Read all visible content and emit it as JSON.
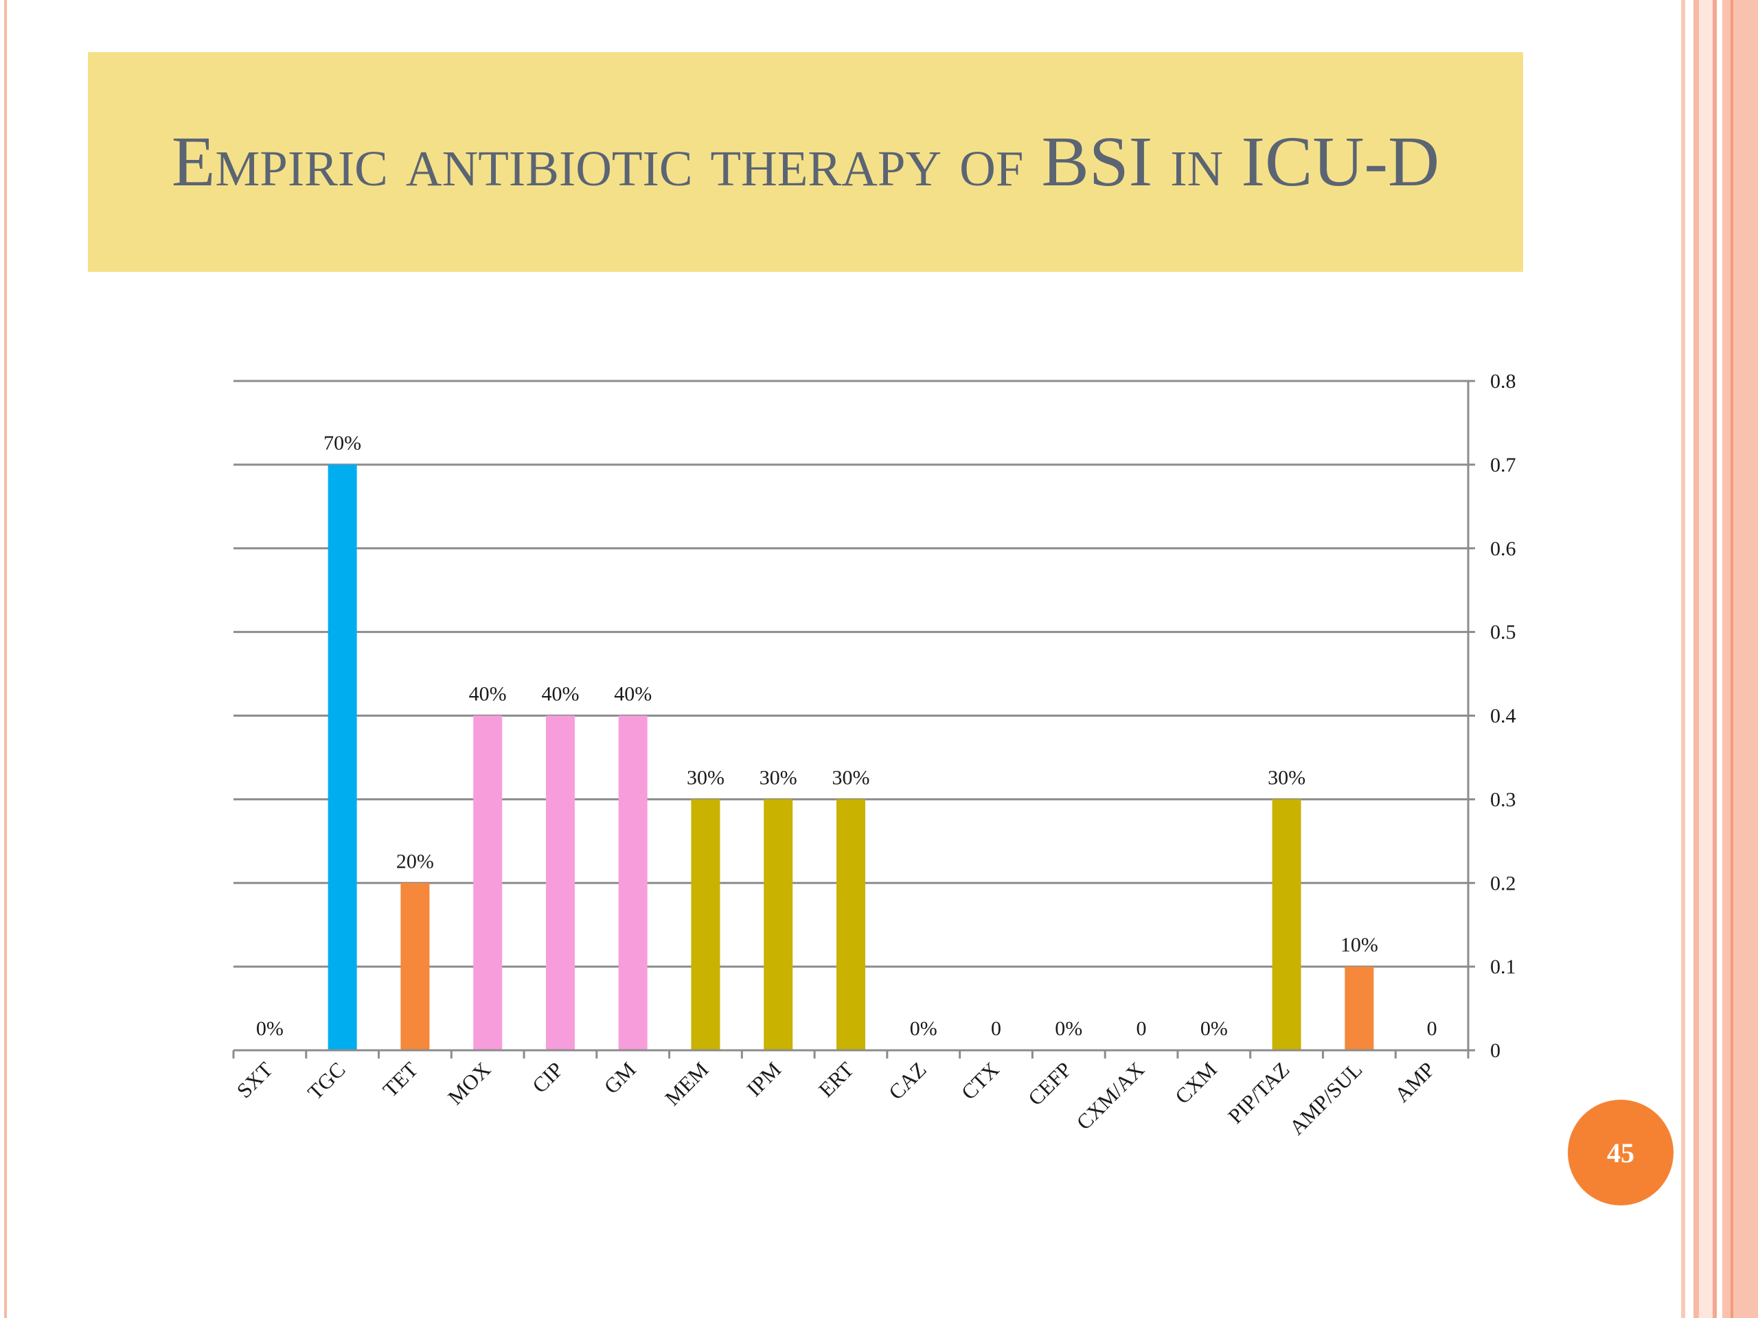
{
  "slide": {
    "title": "Empiric antibiotic therapy of BSI in ICU-D",
    "page_number": "45"
  },
  "theme": {
    "title_bg": "#f5e08a",
    "title_color": "#5a6473",
    "accent": "#f58233",
    "border": "#f7b9a5"
  },
  "chart_data": {
    "type": "bar",
    "categories": [
      "SXT",
      "TGC",
      "TET",
      "MOX",
      "CIP",
      "GM",
      "MEM",
      "IPM",
      "ERT",
      "CAZ",
      "CTX",
      "CEFP",
      "CXM/AX",
      "CXM",
      "PIP/TAZ",
      "AMP/SUL",
      "AMP"
    ],
    "values": [
      0,
      0.7,
      0.2,
      0.4,
      0.4,
      0.4,
      0.3,
      0.3,
      0.3,
      0,
      0,
      0,
      0,
      0,
      0.3,
      0.1,
      0
    ],
    "data_labels": [
      "0%",
      "70%",
      "20%",
      "40%",
      "40%",
      "40%",
      "30%",
      "30%",
      "30%",
      "0%",
      "0",
      "0%",
      "0",
      "0%",
      "30%",
      "10%",
      "0"
    ],
    "colors": [
      "#00aeef",
      "#00aeef",
      "#f5883a",
      "#f79ddc",
      "#f79ddc",
      "#f79ddc",
      "#c9b200",
      "#c9b200",
      "#c9b200",
      "#c9b200",
      "#c9b200",
      "#c9b200",
      "#c9b200",
      "#c9b200",
      "#c9b200",
      "#f5883a",
      "#f5883a"
    ],
    "y_ticks": [
      "0",
      "0.1",
      "0.2",
      "0.3",
      "0.4",
      "0.5",
      "0.6",
      "0.7",
      "0.8"
    ],
    "ylim": [
      0,
      0.8
    ],
    "y_axis_side": "right",
    "grid": true,
    "title": "",
    "xlabel": "",
    "ylabel": ""
  }
}
